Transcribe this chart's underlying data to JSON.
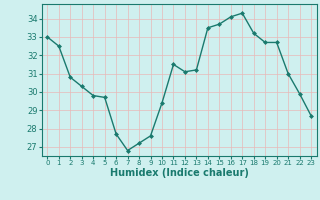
{
  "x": [
    0,
    1,
    2,
    3,
    4,
    5,
    6,
    7,
    8,
    9,
    10,
    11,
    12,
    13,
    14,
    15,
    16,
    17,
    18,
    19,
    20,
    21,
    22,
    23
  ],
  "y": [
    33.0,
    32.5,
    30.8,
    30.3,
    29.8,
    29.7,
    27.7,
    26.8,
    27.2,
    27.6,
    29.4,
    31.5,
    31.1,
    31.2,
    33.5,
    33.7,
    34.1,
    34.3,
    33.2,
    32.7,
    32.7,
    31.0,
    29.9,
    28.7
  ],
  "xlabel": "Humidex (Indice chaleur)",
  "ylim": [
    26.5,
    34.8
  ],
  "yticks": [
    27,
    28,
    29,
    30,
    31,
    32,
    33,
    34
  ],
  "xticks": [
    0,
    1,
    2,
    3,
    4,
    5,
    6,
    7,
    8,
    9,
    10,
    11,
    12,
    13,
    14,
    15,
    16,
    17,
    18,
    19,
    20,
    21,
    22,
    23
  ],
  "line_color": "#1a7a6e",
  "marker_color": "#1a7a6e",
  "bg_color": "#cff0ef",
  "grid_color": "#e8b8b8",
  "border_color": "#1a7a6e",
  "tick_label_color": "#1a7a6e",
  "xlabel_color": "#1a7a6e",
  "marker": "D",
  "marker_size": 2.0,
  "linewidth": 1.0
}
